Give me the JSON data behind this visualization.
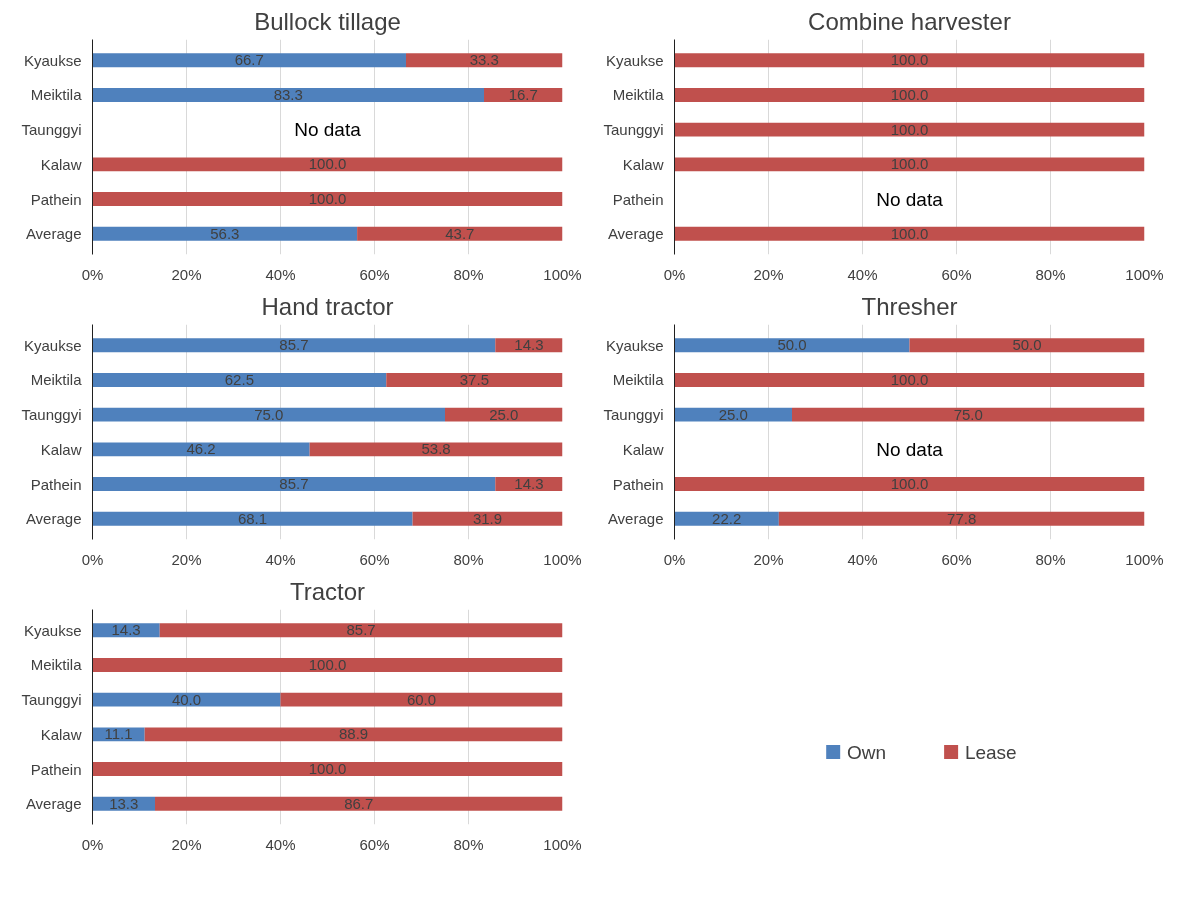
{
  "chart_data": [
    {
      "type": "bar",
      "orientation": "horizontal",
      "stacked": true,
      "title": "Bullock tillage",
      "categories": [
        "Kyaukse",
        "Meiktila",
        "Taunggyi",
        "Kalaw",
        "Pathein",
        "Average"
      ],
      "xlim": [
        0,
        100
      ],
      "xticks": [
        {
          "value": 0,
          "label": "0%"
        },
        {
          "value": 20,
          "label": "20%"
        },
        {
          "value": 40,
          "label": "40%"
        },
        {
          "value": 60,
          "label": "60%"
        },
        {
          "value": 80,
          "label": "80%"
        },
        {
          "value": 100,
          "label": "100%"
        }
      ],
      "grid": "x",
      "series": [
        {
          "color": "#4f81bd",
          "values": [
            66.7,
            83.3,
            null,
            null,
            null,
            56.3
          ],
          "value_labels": [
            "66.7",
            "83.3",
            null,
            null,
            null,
            "56.3"
          ]
        },
        {
          "color": "#c0504d",
          "values": [
            33.3,
            16.7,
            null,
            100,
            100,
            43.7
          ],
          "value_labels": [
            "33.3",
            "16.7",
            null,
            "100.0",
            "100.0",
            "43.7"
          ]
        }
      ],
      "annotations": [
        "No data"
      ]
    },
    {
      "type": "bar",
      "orientation": "horizontal",
      "stacked": true,
      "title": "Combine harvester",
      "categories": [
        "Kyaukse",
        "Meiktila",
        "Taunggyi",
        "Kalaw",
        "Pathein",
        "Average"
      ],
      "xlim": [
        0,
        100
      ],
      "xticks": [
        {
          "value": 0,
          "label": "0%"
        },
        {
          "value": 20,
          "label": "20%"
        },
        {
          "value": 40,
          "label": "40%"
        },
        {
          "value": 60,
          "label": "60%"
        },
        {
          "value": 80,
          "label": "80%"
        },
        {
          "value": 100,
          "label": "100%"
        }
      ],
      "grid": "x",
      "series": [
        {
          "color": "#c0504d",
          "values": [
            100,
            100,
            100,
            100,
            null,
            100
          ],
          "value_labels": [
            "100.0",
            "100.0",
            "100.0",
            "100.0",
            null,
            "100.0"
          ]
        }
      ],
      "annotations": [
        "No data"
      ]
    },
    {
      "type": "bar",
      "orientation": "horizontal",
      "stacked": true,
      "title": "Hand tractor",
      "categories": [
        "Kyaukse",
        "Meiktila",
        "Taunggyi",
        "Kalaw",
        "Pathein",
        "Average"
      ],
      "xlim": [
        0,
        100
      ],
      "xticks": [
        {
          "value": 0,
          "label": "0%"
        },
        {
          "value": 20,
          "label": "20%"
        },
        {
          "value": 40,
          "label": "40%"
        },
        {
          "value": 60,
          "label": "60%"
        },
        {
          "value": 80,
          "label": "80%"
        },
        {
          "value": 100,
          "label": "100%"
        }
      ],
      "grid": "x",
      "series": [
        {
          "color": "#4f81bd",
          "values": [
            85.7,
            62.5,
            75.0,
            46.2,
            85.7,
            68.1
          ],
          "value_labels": [
            "85.7",
            "62.5",
            "75.0",
            "46.2",
            "85.7",
            "68.1"
          ]
        },
        {
          "color": "#c0504d",
          "values": [
            14.3,
            37.5,
            25.0,
            53.8,
            14.3,
            31.9
          ],
          "value_labels": [
            "14.3",
            "37.5",
            "25.0",
            "53.8",
            "14.3",
            "31.9"
          ]
        }
      ]
    },
    {
      "type": "bar",
      "orientation": "horizontal",
      "stacked": true,
      "title": "Thresher",
      "categories": [
        "Kyaukse",
        "Meiktila",
        "Taunggyi",
        "Kalaw",
        "Pathein",
        "Average"
      ],
      "xlim": [
        0,
        100
      ],
      "xticks": [
        {
          "value": 0,
          "label": "0%"
        },
        {
          "value": 20,
          "label": "20%"
        },
        {
          "value": 40,
          "label": "40%"
        },
        {
          "value": 60,
          "label": "60%"
        },
        {
          "value": 80,
          "label": "80%"
        },
        {
          "value": 100,
          "label": "100%"
        }
      ],
      "grid": "x",
      "series": [
        {
          "color": "#4f81bd",
          "values": [
            50.0,
            null,
            25.0,
            null,
            null,
            22.2
          ],
          "value_labels": [
            "50.0",
            null,
            "25.0",
            null,
            null,
            "22.2"
          ]
        },
        {
          "color": "#c0504d",
          "values": [
            50.0,
            100,
            75.0,
            null,
            100,
            77.8
          ],
          "value_labels": [
            "50.0",
            "100.0",
            "75.0",
            null,
            "100.0",
            "77.8"
          ]
        }
      ],
      "annotations": [
        "No data"
      ]
    },
    {
      "type": "bar",
      "orientation": "horizontal",
      "stacked": true,
      "title": "Tractor",
      "categories": [
        "Kyaukse",
        "Meiktila",
        "Taunggyi",
        "Kalaw",
        "Pathein",
        "Average"
      ],
      "xlim": [
        0,
        100
      ],
      "xticks": [
        {
          "value": 0,
          "label": "0%"
        },
        {
          "value": 20,
          "label": "20%"
        },
        {
          "value": 40,
          "label": "40%"
        },
        {
          "value": 60,
          "label": "60%"
        },
        {
          "value": 80,
          "label": "80%"
        },
        {
          "value": 100,
          "label": "100%"
        }
      ],
      "grid": "x",
      "legend": "right",
      "series": [
        {
          "name": "Own",
          "color": "#4f81bd",
          "values": [
            14.3,
            null,
            40.0,
            11.1,
            null,
            13.3
          ],
          "value_labels": [
            "14.3",
            null,
            "40.0",
            "11.1",
            null,
            "13.3"
          ]
        },
        {
          "name": "Lease",
          "color": "#c0504d",
          "values": [
            85.7,
            100,
            60.0,
            88.9,
            100,
            86.7
          ],
          "value_labels": [
            "85.7",
            "100.0",
            "60.0",
            "88.9",
            "100.0",
            "86.7"
          ]
        }
      ]
    }
  ]
}
